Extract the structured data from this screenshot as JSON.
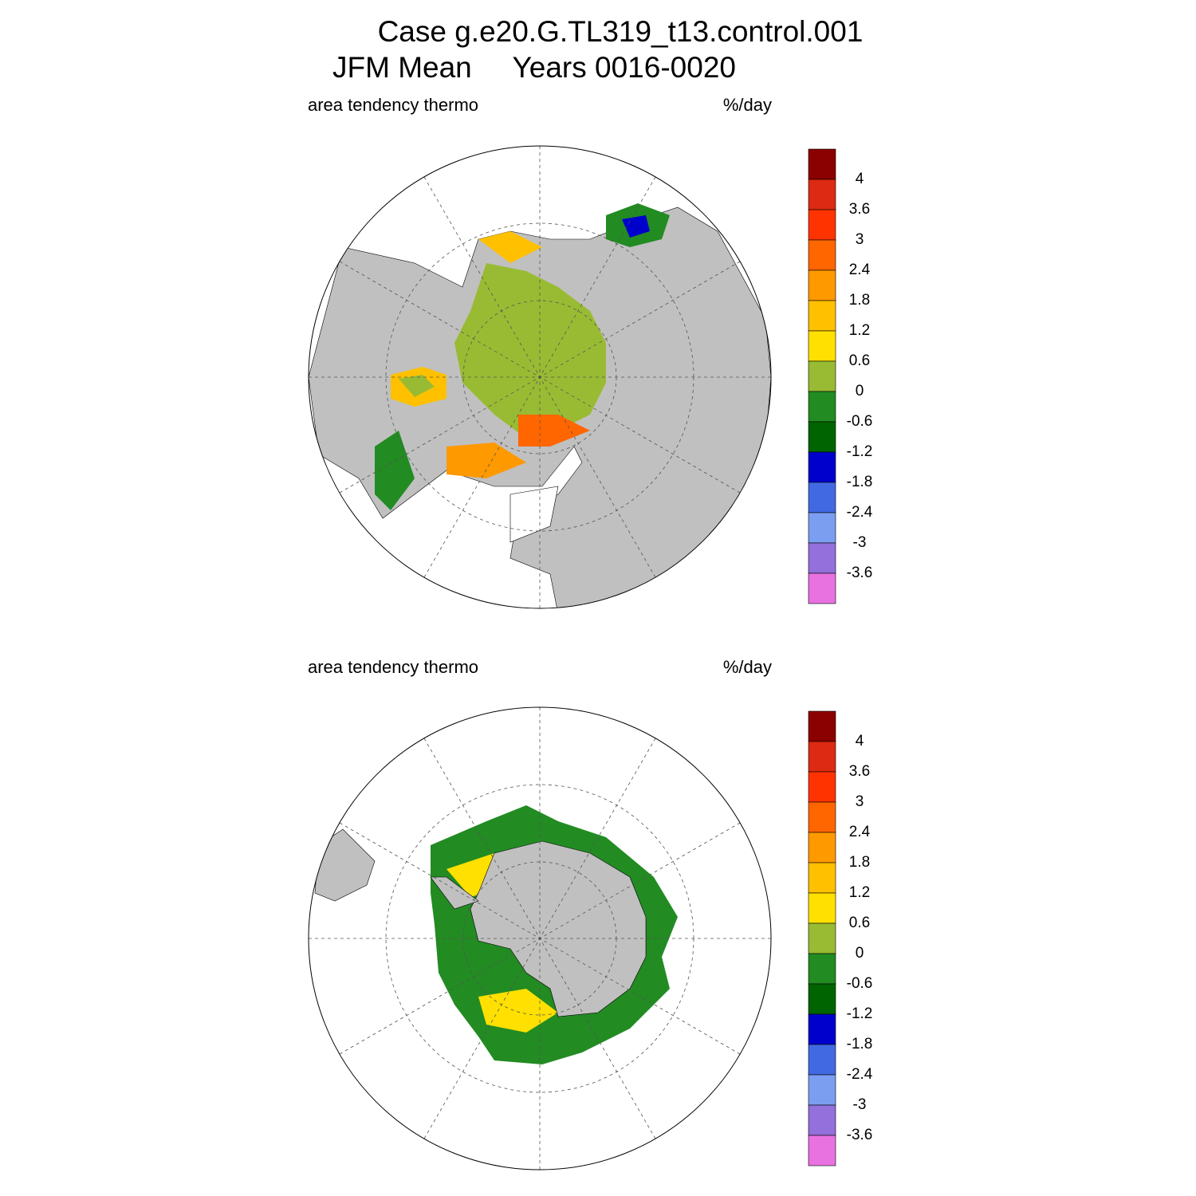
{
  "header": {
    "title": "Case g.e20.G.TL319_t13.control.001",
    "subtitle": "JFM Mean     Years 0016-0020"
  },
  "panels": [
    {
      "left_label": "area tendency thermo",
      "right_label": "%/day",
      "colorbar": {
        "levels": [
          4,
          3.6,
          3,
          2.4,
          1.8,
          1.2,
          0.6,
          0,
          -0.6,
          -1.2,
          -1.8,
          -2.4,
          -3,
          -3.6
        ],
        "colors": [
          "#8b0000",
          "#dd2a12",
          "#ff3300",
          "#ff6600",
          "#ff9900",
          "#ffc000",
          "#ffe000",
          "#99bb33",
          "#228b22",
          "#006400",
          "#0000cd",
          "#4169e1",
          "#7b9ef0",
          "#9370db",
          "#e872e0"
        ]
      }
    },
    {
      "left_label": "area tendency thermo",
      "right_label": "%/day",
      "colorbar": {
        "levels": [
          4,
          3.6,
          3,
          2.4,
          1.8,
          1.2,
          0.6,
          0,
          -0.6,
          -1.2,
          -1.8,
          -2.4,
          -3,
          -3.6
        ],
        "colors": [
          "#8b0000",
          "#dd2a12",
          "#ff3300",
          "#ff6600",
          "#ff9900",
          "#ffc000",
          "#ffe000",
          "#99bb33",
          "#228b22",
          "#006400",
          "#0000cd",
          "#4169e1",
          "#7b9ef0",
          "#9370db",
          "#e872e0"
        ]
      }
    }
  ]
}
